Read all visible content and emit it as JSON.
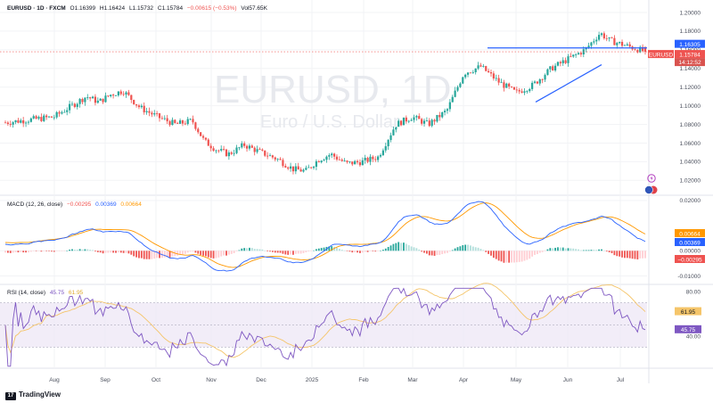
{
  "header": {
    "symbol": "EURUSD · 1D · FXCM",
    "open": "O1.16399",
    "high": "H1.16424",
    "low": "L1.15732",
    "close": "C1.15784",
    "change": "−0.00615 (−0.53%)",
    "volume": "Vol57.65K"
  },
  "watermark": {
    "title": "EURUSD, 1D",
    "subtitle": "Euro / U.S. Dollar"
  },
  "branding": {
    "logo": "TradingView"
  },
  "colors": {
    "up": "#26a69a",
    "down": "#ef5350",
    "macd": "#2962ff",
    "signal": "#ff9800",
    "rsi": "#7e57c2",
    "rsi_ma": "#f5c56a"
  },
  "chart_data": [
    {
      "type": "candlestick",
      "title": "EURUSD, 1D",
      "x_ticks": [
        "Aug",
        "Sep",
        "Oct",
        "Nov",
        "Dec",
        "2025",
        "Feb",
        "Mar",
        "Apr",
        "May",
        "Jun",
        "Jul"
      ],
      "y_ticks": [
        "1.20000",
        "1.18000",
        "1.16000",
        "1.14000",
        "1.12000",
        "1.10000",
        "1.08000",
        "1.06000",
        "1.04000",
        "1.02000"
      ],
      "ylim": [
        1.005,
        1.2
      ],
      "close_path": [
        [
          "Aug",
          1.082
        ],
        [
          "Aug",
          1.088
        ],
        [
          "Aug",
          1.099
        ],
        [
          "Sep",
          1.11
        ],
        [
          "Sep",
          1.104
        ],
        [
          "Sep",
          1.112
        ],
        [
          "Sep",
          1.116
        ],
        [
          "Oct",
          1.098
        ],
        [
          "Oct",
          1.088
        ],
        [
          "Oct",
          1.08
        ],
        [
          "Nov",
          1.084
        ],
        [
          "Nov",
          1.062
        ],
        [
          "Nov",
          1.053
        ],
        [
          "Nov",
          1.048
        ],
        [
          "Dec",
          1.058
        ],
        [
          "Dec",
          1.05
        ],
        [
          "Dec",
          1.043
        ],
        [
          "2025",
          1.032
        ],
        [
          "2025",
          1.03
        ],
        [
          "2025",
          1.042
        ],
        [
          "2025",
          1.048
        ],
        [
          "Feb",
          1.038
        ],
        [
          "Feb",
          1.04
        ],
        [
          "Feb",
          1.045
        ],
        [
          "Mar",
          1.08
        ],
        [
          "Mar",
          1.088
        ],
        [
          "Mar",
          1.08
        ],
        [
          "Apr",
          1.095
        ],
        [
          "Apr",
          1.135
        ],
        [
          "Apr",
          1.142
        ],
        [
          "May",
          1.125
        ],
        [
          "May",
          1.114
        ],
        [
          "May",
          1.122
        ],
        [
          "Jun",
          1.14
        ],
        [
          "Jun",
          1.15
        ],
        [
          "Jun",
          1.16
        ],
        [
          "Jul",
          1.178
        ],
        [
          "Jul",
          1.17
        ],
        [
          "Jul",
          1.158
        ]
      ],
      "trendlines": [
        {
          "label": "resistance",
          "from": [
            "Apr",
            1.162
          ],
          "to": [
            "Jul",
            1.162
          ]
        },
        {
          "label": "support",
          "from": [
            "May",
            1.104
          ],
          "to": [
            "Jun",
            1.144
          ]
        }
      ],
      "price_labels": [
        {
          "text": "1.16305",
          "value": 1.16305,
          "color": "#2962ff"
        },
        {
          "text": "1.15784",
          "value": 1.15784,
          "color": "#ef5350"
        }
      ],
      "symbol_tag": "EURUSD",
      "countdown": "14:12:52"
    },
    {
      "type": "line",
      "title": "MACD (12, 26, close)",
      "legend_values": [
        "−0.00295",
        "0.00369",
        "0.00664"
      ],
      "y_ticks": [
        "0.02000",
        "0.00000",
        "-0.01000"
      ],
      "ylim": [
        -0.013,
        0.021
      ],
      "last_values": {
        "macd": 0.00369,
        "signal": 0.00664,
        "histogram": -0.00295
      },
      "labels": [
        "0.00664",
        "0.00369",
        "−0.00295"
      ]
    },
    {
      "type": "line",
      "title": "RSI (14, close)",
      "legend_values": [
        "45.75",
        "61.95"
      ],
      "y_ticks": [
        "80.00",
        "40.00"
      ],
      "ylim": [
        12,
        84
      ],
      "bands": [
        70,
        50,
        30
      ],
      "last_values": {
        "rsi": 45.75,
        "rsi_ma": 61.95
      },
      "labels": [
        "61.95",
        "45.75"
      ]
    }
  ]
}
